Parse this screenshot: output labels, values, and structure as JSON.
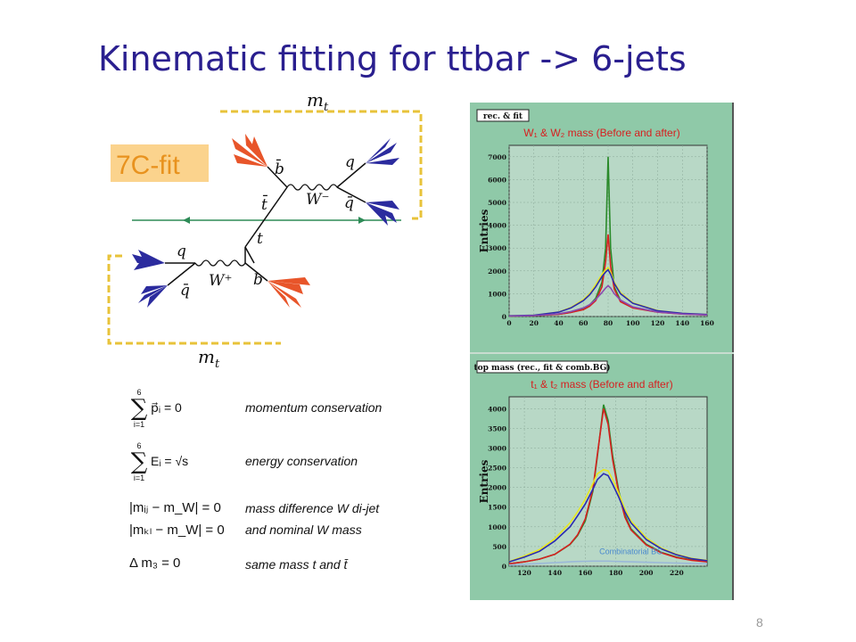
{
  "slide": {
    "title": "Kinematic fitting for ttbar -> 6-jets",
    "page_number": "8"
  },
  "diagram": {
    "fit_label": "7C-fit",
    "top_label": "m_t",
    "bottom_label": "m_t",
    "particles": {
      "b_bar": "b̄",
      "t_bar": "t̄",
      "W_minus": "W⁻",
      "q_upper": "q",
      "q_bar_upper": "q̄",
      "t": "t",
      "q_lower": "q",
      "q_bar_lower": "q̄",
      "W_plus": "W⁺",
      "b": "b"
    },
    "colors": {
      "b_jet": "#e8552a",
      "light_jet": "#2b2b9e",
      "beam": "#2e8b57",
      "bracket": "#e8c33a",
      "fit_box": "#fbd38d",
      "fit_text": "#e8921e"
    }
  },
  "equations": [
    {
      "top": "6",
      "bottom": "i=1",
      "expr": "p⃗ᵢ = 0",
      "desc": "momentum conservation"
    },
    {
      "top": "6",
      "bottom": "i=1",
      "expr": "Eᵢ = √s",
      "desc": "energy conservation"
    },
    {
      "expr": "|mᵢⱼ − m_W| = 0",
      "desc": "mass difference W di-jet",
      "desc2": "and nominal W mass"
    },
    {
      "expr": "|mₖₗ − m_W| = 0"
    },
    {
      "expr": "Δ m₃ = 0",
      "desc": "same mass t and t̄"
    }
  ],
  "chart_data": [
    {
      "type": "line",
      "tag": "rec. & fit",
      "title": "W₁ & W₂ mass (Before and after)",
      "ylabel": "Entries",
      "xlabel": "",
      "xlim": [
        0,
        160
      ],
      "ylim": [
        0,
        7500
      ],
      "x_ticks": [
        0,
        20,
        40,
        60,
        80,
        100,
        120,
        140,
        160
      ],
      "y_ticks": [
        0,
        1000,
        2000,
        3000,
        4000,
        5000,
        6000,
        7000
      ],
      "grid": true,
      "x": [
        0,
        20,
        40,
        50,
        60,
        65,
        70,
        75,
        78,
        80,
        82,
        85,
        90,
        100,
        120,
        140,
        160
      ],
      "series": [
        {
          "color": "#2a8a2a",
          "values": [
            20,
            40,
            100,
            180,
            320,
            500,
            800,
            1500,
            3000,
            7000,
            3000,
            1300,
            700,
            400,
            200,
            120,
            80
          ]
        },
        {
          "color": "#d62020",
          "values": [
            20,
            40,
            100,
            180,
            300,
            450,
            700,
            1300,
            2400,
            3600,
            2200,
            1200,
            650,
            380,
            190,
            110,
            70
          ]
        },
        {
          "color": "#e8e820",
          "values": [
            30,
            60,
            200,
            400,
            750,
            1000,
            1400,
            1850,
            2050,
            2150,
            1950,
            1500,
            1050,
            600,
            260,
            140,
            90
          ]
        },
        {
          "color": "#2a2ab0",
          "values": [
            30,
            60,
            190,
            380,
            700,
            950,
            1300,
            1750,
            1950,
            2050,
            1850,
            1450,
            1000,
            580,
            250,
            140,
            90
          ]
        },
        {
          "color": "#8a4ab0",
          "values": [
            20,
            40,
            120,
            220,
            380,
            520,
            750,
            1050,
            1250,
            1350,
            1250,
            1000,
            720,
            420,
            200,
            110,
            70
          ]
        }
      ]
    },
    {
      "type": "line",
      "tag": "top mass (rec., fit & comb.BG)",
      "title": "t₁ & t₂ mass (Before and after)",
      "ylabel": "Entries",
      "xlabel": "",
      "annotation": "Combinatorial BG",
      "xlim": [
        110,
        240
      ],
      "ylim": [
        0,
        4300
      ],
      "x_ticks": [
        120,
        140,
        160,
        180,
        200,
        220
      ],
      "y_ticks": [
        0,
        500,
        1000,
        1500,
        2000,
        2500,
        3000,
        3500,
        4000
      ],
      "grid": true,
      "x": [
        110,
        120,
        130,
        140,
        150,
        155,
        160,
        165,
        168,
        172,
        175,
        178,
        182,
        186,
        190,
        200,
        210,
        220,
        230,
        240
      ],
      "series": [
        {
          "color": "#2a8a2a",
          "values": [
            60,
            110,
            180,
            300,
            550,
            780,
            1150,
            1900,
            2800,
            4100,
            3700,
            2800,
            1900,
            1300,
            950,
            560,
            350,
            230,
            160,
            120
          ]
        },
        {
          "color": "#d62020",
          "values": [
            60,
            110,
            180,
            300,
            560,
            800,
            1200,
            1950,
            2850,
            4000,
            3600,
            2700,
            1850,
            1250,
            920,
            540,
            340,
            220,
            150,
            110
          ]
        },
        {
          "color": "#e8e820",
          "values": [
            120,
            260,
            420,
            700,
            1100,
            1380,
            1700,
            2100,
            2350,
            2450,
            2420,
            2200,
            1850,
            1450,
            1150,
            720,
            460,
            300,
            200,
            150
          ]
        },
        {
          "color": "#2a2ab0",
          "values": [
            110,
            230,
            380,
            640,
            1000,
            1280,
            1580,
            1950,
            2200,
            2350,
            2300,
            2080,
            1750,
            1380,
            1100,
            680,
            440,
            290,
            190,
            140
          ]
        },
        {
          "color": "#9ab8d8",
          "values": [
            30,
            50,
            70,
            90,
            110,
            120,
            125,
            130,
            130,
            130,
            128,
            125,
            120,
            115,
            110,
            100,
            90,
            80,
            70,
            60
          ]
        }
      ]
    }
  ]
}
